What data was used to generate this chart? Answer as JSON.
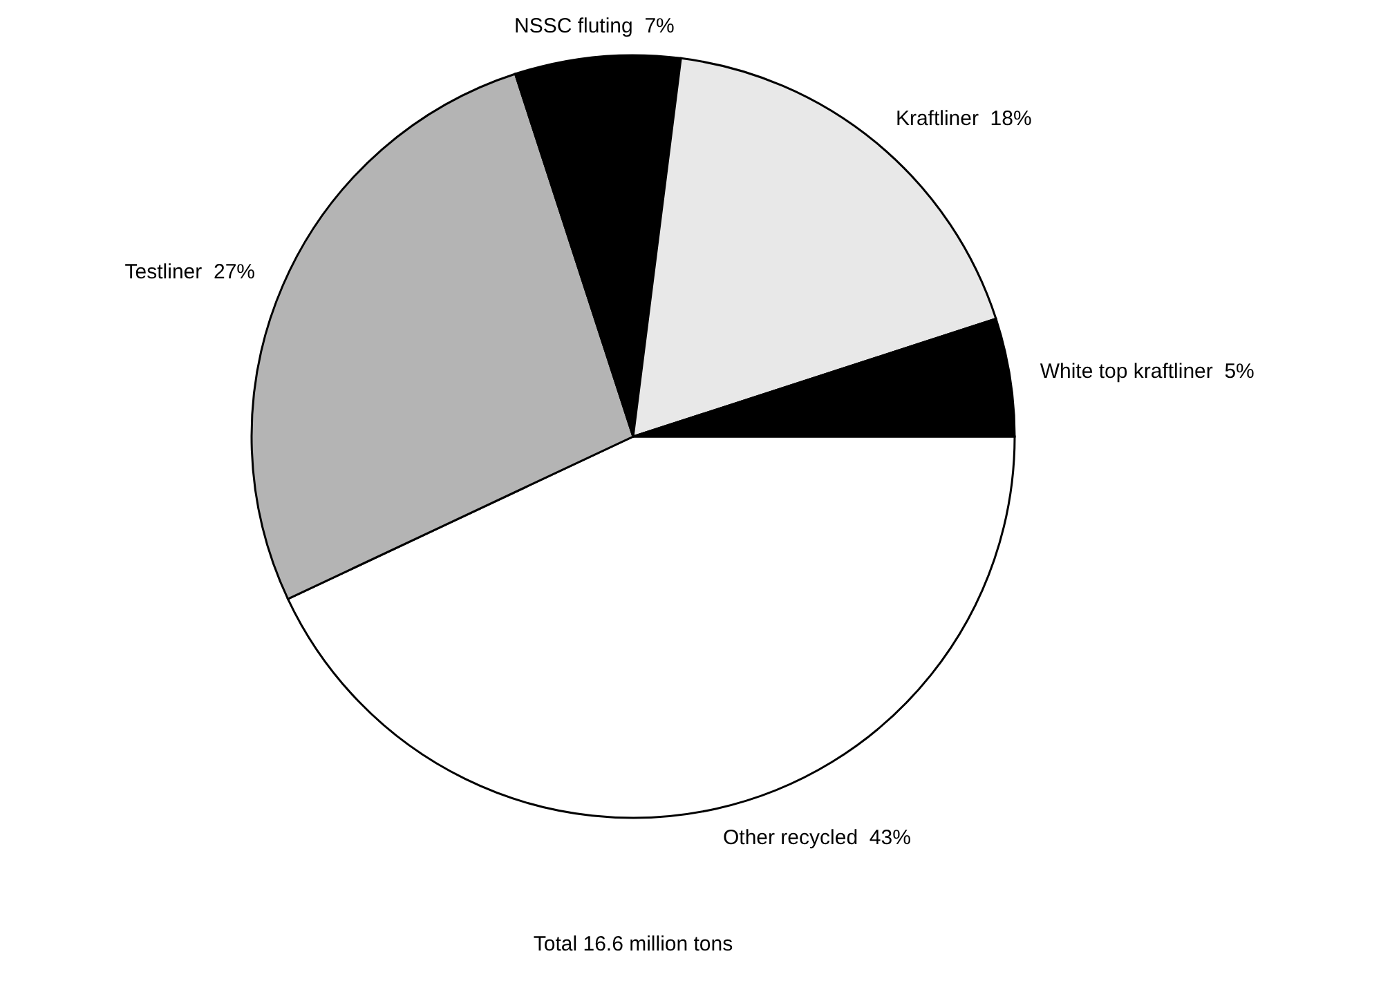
{
  "chart_data": {
    "type": "pie",
    "categories": [
      "Other recycled",
      "Testliner",
      "NSSC fluting",
      "Kraftliner",
      "White top kraftliner"
    ],
    "values": [
      43,
      27,
      7,
      18,
      5
    ],
    "value_labels": [
      "43%",
      "27%",
      "7%",
      "18%",
      "5%"
    ],
    "colors": [
      "#ffffff",
      "#b4b4b4",
      "#000000",
      "#e8e8e8",
      "#000000"
    ],
    "annotations": [
      "Total 16.6 million tons"
    ]
  }
}
